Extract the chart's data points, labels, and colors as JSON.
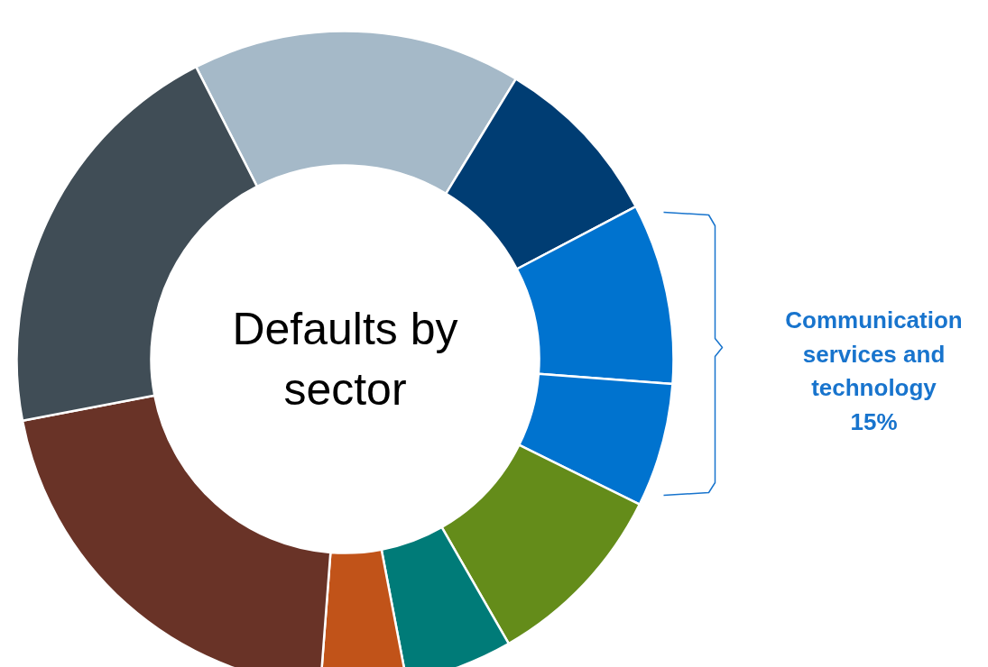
{
  "chart_data": {
    "type": "donut",
    "title": "Defaults by sector",
    "categories": [
      null,
      null,
      null,
      null,
      null,
      null,
      null,
      null,
      null
    ],
    "values": [
      16.2,
      8.6,
      8.9,
      6.1,
      9.4,
      5.3,
      4.2,
      20.8,
      20.5
    ],
    "colors": [
      "#a5b9c8",
      "#003d73",
      "#0073cf",
      "#0073cf",
      "#648c1a",
      "#007b78",
      "#c15319",
      "#693327",
      "#404d56"
    ],
    "annotations": [
      "Communication services and technology 15%"
    ]
  }
}
